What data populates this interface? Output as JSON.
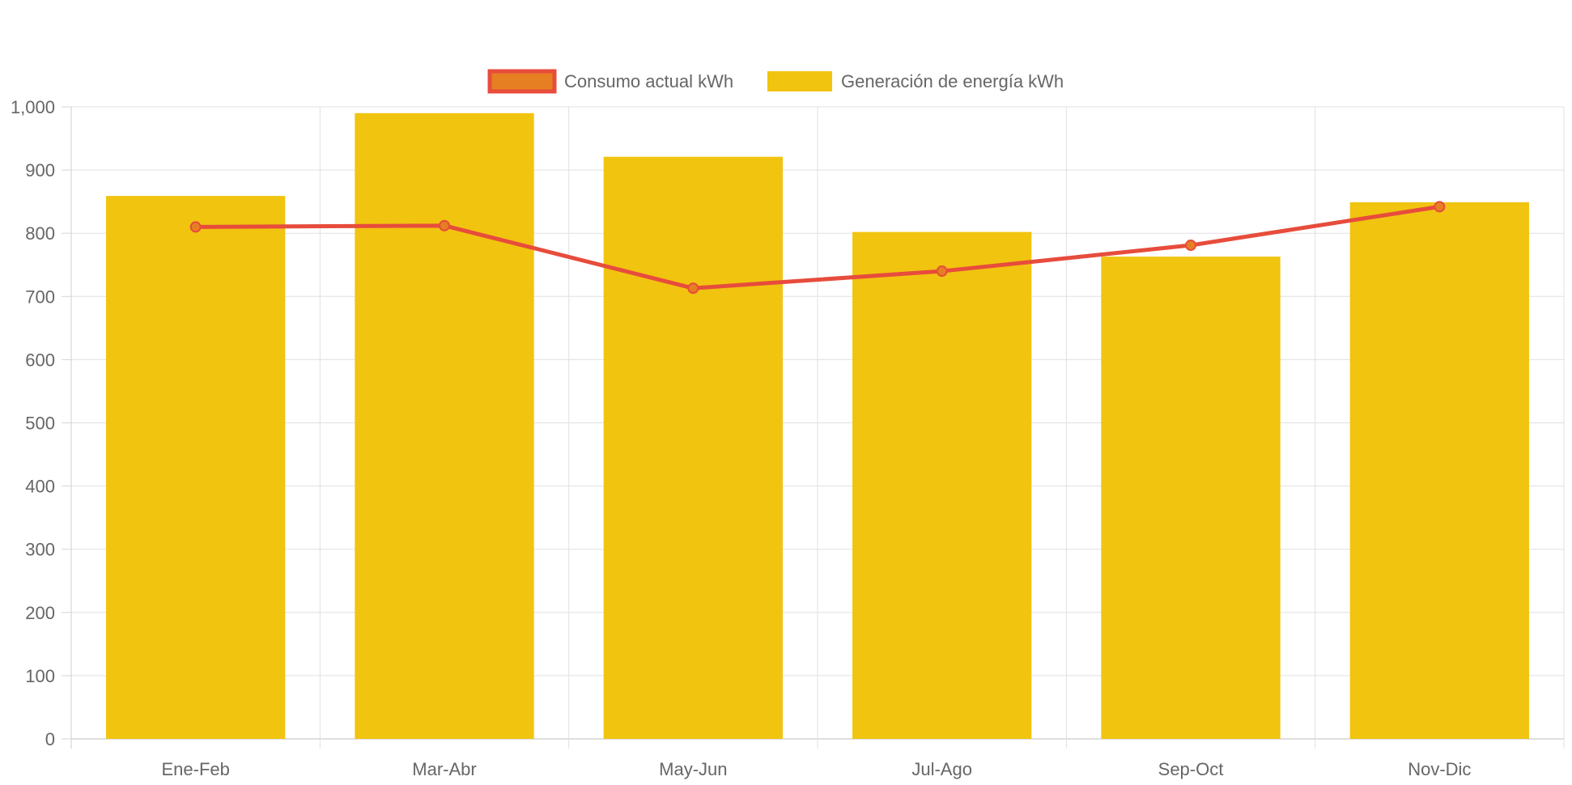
{
  "chart_data": {
    "type": "bar",
    "categories": [
      "Ene-Feb",
      "Mar-Abr",
      "May-Jun",
      "Jul-Ago",
      "Sep-Oct",
      "Nov-Dic"
    ],
    "series": [
      {
        "name": "Consumo actual kWh",
        "kind": "line",
        "values": [
          810,
          812,
          713,
          740,
          781,
          842
        ],
        "color": "#e74c3c",
        "point_color": "#e67e22"
      },
      {
        "name": "Generación de energía kWh",
        "kind": "bar",
        "values": [
          859,
          990,
          921,
          802,
          763,
          849
        ],
        "color": "#f1c40f"
      }
    ],
    "ylim": [
      0,
      1000
    ],
    "yticks": [
      0,
      100,
      200,
      300,
      400,
      500,
      600,
      700,
      800,
      900,
      1000
    ],
    "ytick_labels": [
      "0",
      "100",
      "200",
      "300",
      "400",
      "500",
      "600",
      "700",
      "800",
      "900",
      "1,000"
    ],
    "grid": true,
    "legend_position": "top-center",
    "title": "",
    "xlabel": "",
    "ylabel": ""
  }
}
